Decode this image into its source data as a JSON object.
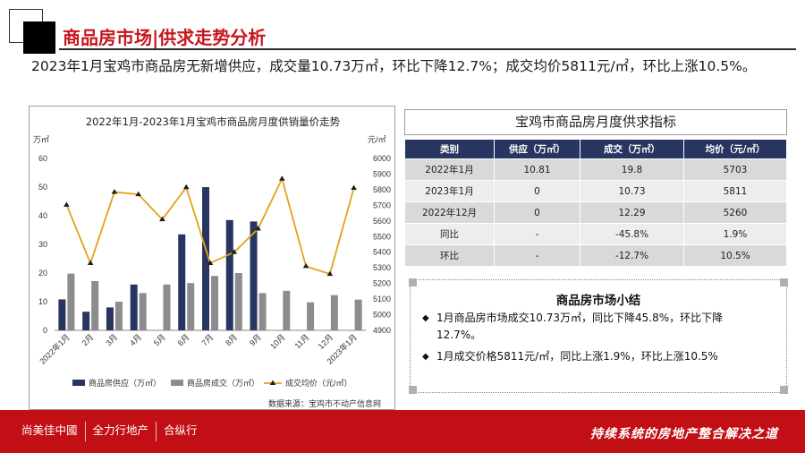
{
  "header": {
    "title": "商品房市场|供求走势分析"
  },
  "intro": {
    "text": "2023年1月宝鸡市商品房无新增供应，成交量10.73万㎡，环比下降12.7%；成交均价5811元/㎡，环比上涨10.5%。"
  },
  "chart_data": {
    "type": "bar",
    "title": "2022年1月-2023年1月宝鸡市商品房月度供销量价走势",
    "y_left_unit": "万㎡",
    "y_right_unit": "元/㎡",
    "categories": [
      "2022年1月",
      "2月",
      "3月",
      "4月",
      "5月",
      "6月",
      "7月",
      "8月",
      "9月",
      "10月",
      "11月",
      "12月",
      "2023年1月"
    ],
    "series": [
      {
        "name": "商品房供应（万㎡）",
        "kind": "bar",
        "axis": "left",
        "color": "#283560",
        "values": [
          10.81,
          6.5,
          8.0,
          16.0,
          0,
          33.5,
          50.0,
          38.5,
          38.0,
          0,
          0,
          0,
          0
        ]
      },
      {
        "name": "商品房成交（万㎡）",
        "kind": "bar",
        "axis": "left",
        "color": "#8c8c8c",
        "values": [
          19.8,
          17.2,
          10.0,
          13.0,
          16.0,
          16.5,
          19.0,
          20.0,
          13.0,
          13.8,
          9.8,
          12.29,
          10.73
        ]
      },
      {
        "name": "成交均价（元/㎡）",
        "kind": "line",
        "axis": "right",
        "color": "#e3a21a",
        "values": [
          5703,
          5330,
          5785,
          5770,
          5610,
          5815,
          5330,
          5400,
          5550,
          5870,
          5310,
          5260,
          5811
        ]
      }
    ],
    "ylim_left": [
      0,
      60
    ],
    "yticks_left": [
      0,
      10,
      20,
      30,
      40,
      50,
      60
    ],
    "ylim_right": [
      4900,
      6000
    ],
    "yticks_right": [
      4900,
      5000,
      5100,
      5200,
      5300,
      5400,
      5500,
      5600,
      5700,
      5800,
      5900,
      6000
    ],
    "grid": false,
    "legend": "bottom"
  },
  "source": {
    "text": "数据来源：宝鸡市不动产信息网"
  },
  "table": {
    "title": "宝鸡市商品房月度供求指标",
    "headers": [
      "类别",
      "供应（万㎡）",
      "成交（万㎡）",
      "均价（元/㎡）"
    ],
    "rows": [
      [
        "2022年1月",
        "10.81",
        "19.8",
        "5703"
      ],
      [
        "2023年1月",
        "0",
        "10.73",
        "5811"
      ],
      [
        "2022年12月",
        "0",
        "12.29",
        "5260"
      ],
      [
        "同比",
        "-",
        "-45.8%",
        "1.9%"
      ],
      [
        "环比",
        "-",
        "-12.7%",
        "10.5%"
      ]
    ]
  },
  "summary": {
    "title": "商品房市场小结",
    "bullet": "◆",
    "items": [
      "1月商品房市场成交10.73万㎡，同比下降45.8%，环比下降12.7%。",
      "1月成交价格5811元/㎡，同比上涨1.9%，环比上涨10.5%"
    ]
  },
  "footer": {
    "logos": [
      "尚美佳中國",
      "全力行地产",
      "合纵行"
    ],
    "slogan": "持续系统的房地产整合解决之道"
  },
  "colors": {
    "brand_red": "#c10f15",
    "header_navy": "#283560",
    "accent_gold": "#e3a21a"
  }
}
